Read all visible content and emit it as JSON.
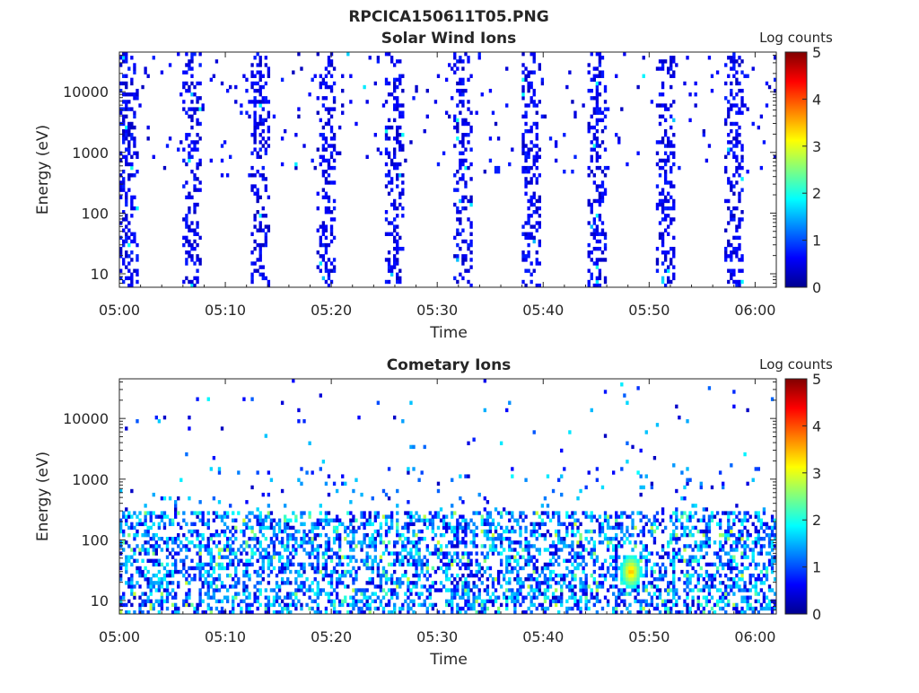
{
  "figure_title": "RPCICA150611T05.PNG",
  "colorbar": {
    "label": "Log counts",
    "ticks": [
      "0",
      "1",
      "2",
      "3",
      "4",
      "5"
    ],
    "colormap": "jet",
    "range": [
      0,
      5
    ]
  },
  "chart_data": [
    {
      "type": "heatmap",
      "title": "Solar Wind Ions",
      "xlabel": "Time",
      "ylabel": "Energy (eV)",
      "x_ticks": [
        "05:00",
        "05:10",
        "05:20",
        "05:30",
        "05:40",
        "05:50",
        "06:00"
      ],
      "x_range_minutes": [
        0,
        62
      ],
      "y_ticks": [
        "10",
        "100",
        "1000",
        "10000"
      ],
      "y_scale": "log",
      "y_range": [
        6,
        45000
      ],
      "colorbar_range": [
        0,
        5
      ],
      "sweep_centers_minutes": [
        0.8,
        6.9,
        13.2,
        19.6,
        26.0,
        32.4,
        38.8,
        45.2,
        51.6,
        58.0
      ],
      "typical_log_counts": 0.3,
      "max_log_counts": 1.5
    },
    {
      "type": "heatmap",
      "title": "Cometary Ions",
      "xlabel": "Time",
      "ylabel": "Energy (eV)",
      "x_ticks": [
        "05:00",
        "05:10",
        "05:20",
        "05:30",
        "05:40",
        "05:50",
        "06:00"
      ],
      "x_range_minutes": [
        0,
        62
      ],
      "y_ticks": [
        "10",
        "100",
        "1000",
        "10000"
      ],
      "y_scale": "log",
      "y_range": [
        6,
        45000
      ],
      "colorbar_range": [
        0,
        5
      ],
      "energy_band_eV": [
        10,
        300
      ],
      "peak": {
        "time_minutes": 48.3,
        "energy_eV": 30,
        "log_counts": 3.6
      },
      "typical_log_counts": 1.0
    }
  ]
}
